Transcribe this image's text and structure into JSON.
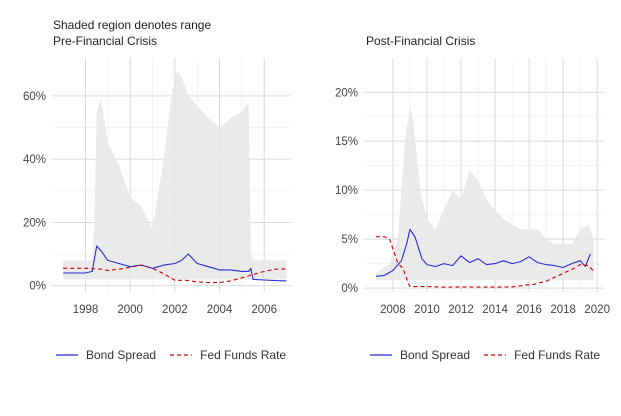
{
  "caption": "Shaded region denotes range",
  "legend": [
    {
      "label": "Bond Spread",
      "color": "#2b2bd6",
      "style": "solid"
    },
    {
      "label": "Fed Funds Rate",
      "color": "#cc0000",
      "style": "dashed"
    }
  ],
  "chart_data": [
    {
      "type": "line",
      "title": "Pre-Financial Crisis",
      "xlim": [
        1996.5,
        2007.2
      ],
      "ylim": [
        -2,
        72
      ],
      "x_ticks": [
        1998,
        2000,
        2002,
        2004,
        2006
      ],
      "y_ticks": [
        0,
        20,
        40,
        60
      ],
      "y_tick_labels": [
        "0%",
        "20%",
        "40%",
        "60%"
      ],
      "grid": true,
      "legend_position": "bottom",
      "range_band": {
        "x": [
          1997.0,
          1998.3,
          1998.4,
          1998.5,
          1998.7,
          1999.0,
          1999.5,
          2000.0,
          2000.5,
          2001.0,
          2001.5,
          2001.9,
          2002.1,
          2002.3,
          2002.6,
          2003.0,
          2003.5,
          2004.0,
          2004.5,
          2005.0,
          2005.3,
          2005.4,
          2005.5,
          2006.0,
          2006.5,
          2007.0
        ],
        "low": [
          2,
          2,
          2,
          2,
          2,
          2,
          2,
          2,
          2,
          2,
          2,
          2,
          2,
          2,
          2,
          2,
          2,
          2,
          2,
          2,
          2,
          2,
          2,
          2,
          2,
          2
        ],
        "high": [
          8,
          8,
          20,
          55,
          59,
          45,
          38,
          28,
          25,
          18,
          40,
          62,
          68,
          66,
          60,
          57,
          53,
          50,
          53,
          55,
          58,
          10,
          8,
          8,
          8,
          8
        ]
      },
      "series": [
        {
          "name": "Bond Spread",
          "color": "#2b2bd6",
          "x": [
            1997.0,
            1998.0,
            1998.3,
            1998.5,
            1998.7,
            1999.0,
            1999.5,
            2000.0,
            2000.5,
            2001.0,
            2001.5,
            2002.0,
            2002.3,
            2002.6,
            2003.0,
            2003.5,
            2004.0,
            2004.5,
            2005.0,
            2005.3,
            2005.4,
            2005.5,
            2006.0,
            2006.5,
            2007.0
          ],
          "values": [
            4,
            4,
            4.5,
            12.5,
            11,
            8,
            7,
            6,
            6.5,
            5.5,
            6.5,
            7,
            8,
            10,
            7,
            6,
            5,
            5,
            4.5,
            4.5,
            5.5,
            2,
            1.8,
            1.6,
            1.5
          ]
        },
        {
          "name": "Fed Funds Rate",
          "color": "#cc0000",
          "x": [
            1997.0,
            1998.0,
            1998.7,
            1999.0,
            1999.5,
            2000.0,
            2000.5,
            2001.0,
            2001.5,
            2002.0,
            2002.5,
            2003.0,
            2003.5,
            2004.0,
            2004.5,
            2005.0,
            2005.5,
            2006.0,
            2006.5,
            2007.0
          ],
          "values": [
            5.5,
            5.5,
            5.2,
            4.8,
            5.2,
            5.8,
            6.5,
            5.5,
            3.8,
            1.7,
            1.7,
            1.2,
            1.0,
            1.0,
            1.5,
            2.5,
            3.5,
            4.5,
            5.2,
            5.3
          ]
        }
      ]
    },
    {
      "type": "line",
      "title": "Post-Financial Crisis",
      "xlim": [
        2006.3,
        2020.4
      ],
      "ylim": [
        -0.4,
        23.5
      ],
      "x_ticks": [
        2008,
        2010,
        2012,
        2014,
        2016,
        2018,
        2020
      ],
      "y_ticks": [
        0,
        5,
        10,
        15,
        20
      ],
      "y_tick_labels": [
        "0%",
        "5%",
        "10%",
        "15%",
        "20%"
      ],
      "grid": true,
      "legend_position": "bottom",
      "range_band": {
        "x": [
          2007.0,
          2007.8,
          2008.3,
          2008.7,
          2009.0,
          2009.2,
          2009.6,
          2010.0,
          2010.5,
          2011.0,
          2011.5,
          2012.0,
          2012.5,
          2013.0,
          2013.5,
          2014.0,
          2014.5,
          2015.0,
          2015.5,
          2016.0,
          2016.5,
          2017.0,
          2017.5,
          2018.0,
          2018.5,
          2019.0,
          2019.5,
          2019.8
        ],
        "low": [
          0.8,
          0.8,
          0.8,
          0.8,
          0.8,
          0.8,
          0.8,
          0.8,
          0.8,
          0.8,
          0.8,
          0.8,
          0.8,
          0.8,
          0.8,
          0.8,
          0.8,
          0.8,
          0.8,
          0.8,
          0.8,
          0.8,
          0.8,
          0.8,
          0.8,
          0.8,
          0.8,
          0.8
        ],
        "high": [
          1.5,
          2.5,
          5,
          15,
          18.5,
          17,
          10,
          7,
          6,
          8,
          10,
          9,
          12,
          11,
          9,
          8,
          7,
          6.5,
          6,
          6,
          6,
          5,
          4.5,
          4.5,
          4.5,
          6,
          6.5,
          5
        ]
      },
      "series": [
        {
          "name": "Bond Spread",
          "color": "#2b2bd6",
          "x": [
            2007.0,
            2007.5,
            2008.0,
            2008.5,
            2008.8,
            2009.0,
            2009.3,
            2009.7,
            2010.0,
            2010.5,
            2011.0,
            2011.5,
            2012.0,
            2012.5,
            2013.0,
            2013.5,
            2014.0,
            2014.5,
            2015.0,
            2015.5,
            2016.0,
            2016.5,
            2017.0,
            2017.5,
            2018.0,
            2018.5,
            2019.0,
            2019.3,
            2019.6
          ],
          "values": [
            1.2,
            1.3,
            1.8,
            2.8,
            4.5,
            6,
            5.2,
            3,
            2.4,
            2.2,
            2.5,
            2.3,
            3.3,
            2.6,
            3,
            2.4,
            2.5,
            2.8,
            2.5,
            2.7,
            3.2,
            2.6,
            2.4,
            2.3,
            2.1,
            2.5,
            2.8,
            2.2,
            3.5
          ]
        },
        {
          "name": "Fed Funds Rate",
          "color": "#cc0000",
          "x": [
            2007.0,
            2007.5,
            2007.8,
            2008.0,
            2008.3,
            2008.6,
            2008.9,
            2009.0,
            2010.0,
            2011.0,
            2012.0,
            2013.0,
            2014.0,
            2015.0,
            2015.8,
            2016.3,
            2017.0,
            2017.5,
            2018.0,
            2018.5,
            2019.0,
            2019.5,
            2019.8
          ],
          "values": [
            5.25,
            5.25,
            5.0,
            4.0,
            2.5,
            2.0,
            0.5,
            0.15,
            0.15,
            0.1,
            0.12,
            0.1,
            0.1,
            0.12,
            0.3,
            0.4,
            0.7,
            1.1,
            1.5,
            1.9,
            2.4,
            2.3,
            1.7
          ]
        }
      ]
    }
  ]
}
